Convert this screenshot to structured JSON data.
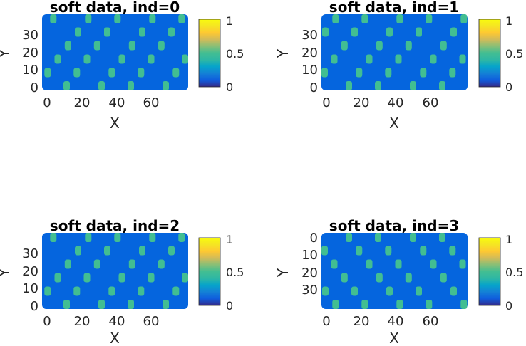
{
  "colors": {
    "background": "#0565DE",
    "soft": "#42BE92",
    "axis_text": "#262626",
    "title": "#000000"
  },
  "colormap": "parula",
  "chart_data": [
    {
      "type": "heatmap",
      "title": "soft data, ind=0",
      "xlabel": "X",
      "ylabel": "Y",
      "xlim": [
        0,
        80
      ],
      "ylim": [
        0,
        40
      ],
      "y_direction": "normal",
      "xticks": [
        "0",
        "20",
        "40",
        "60"
      ],
      "yticks": [
        "0",
        "10",
        "20",
        "30"
      ],
      "clim": [
        0,
        1
      ],
      "colorbar_ticks": [
        "0",
        "0.5",
        "1"
      ],
      "values": [
        0,
        0.5
      ]
    },
    {
      "type": "heatmap",
      "title": "soft data, ind=1",
      "xlabel": "X",
      "ylabel": "Y",
      "xlim": [
        0,
        80
      ],
      "ylim": [
        0,
        40
      ],
      "y_direction": "normal",
      "xticks": [
        "0",
        "20",
        "40",
        "60"
      ],
      "yticks": [
        "0",
        "10",
        "20",
        "30"
      ],
      "clim": [
        0,
        1
      ],
      "colorbar_ticks": [
        "0",
        "0.5",
        "1"
      ],
      "values": [
        0,
        0.5
      ]
    },
    {
      "type": "heatmap",
      "title": "soft data, ind=2",
      "xlabel": "X",
      "ylabel": "Y",
      "xlim": [
        0,
        80
      ],
      "ylim": [
        0,
        40
      ],
      "y_direction": "normal",
      "xticks": [
        "0",
        "20",
        "40",
        "60"
      ],
      "yticks": [
        "0",
        "10",
        "20",
        "30"
      ],
      "clim": [
        0,
        1
      ],
      "colorbar_ticks": [
        "0",
        "0.5",
        "1"
      ],
      "values": [
        0,
        0.5
      ]
    },
    {
      "type": "heatmap",
      "title": "soft data, ind=3",
      "xlabel": "X",
      "ylabel": "Y",
      "xlim": [
        0,
        80
      ],
      "ylim": [
        0,
        40
      ],
      "y_direction": "reverse",
      "xticks": [
        "0",
        "20",
        "40",
        "60"
      ],
      "yticks": [
        "0",
        "10",
        "20",
        "30"
      ],
      "clim": [
        0,
        1
      ],
      "colorbar_ticks": [
        "0",
        "0.5",
        "1"
      ],
      "values": [
        0,
        0.5
      ]
    }
  ]
}
